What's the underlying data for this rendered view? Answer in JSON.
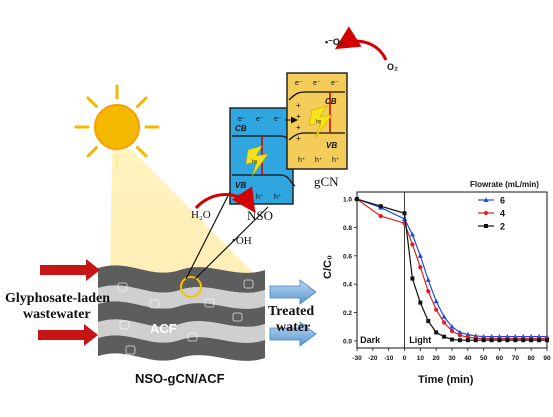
{
  "left": {
    "inlet_label_line1": "Glyphosate-laden",
    "inlet_label_line2": "wastewater",
    "outlet_label_line1": "Treated",
    "outlet_label_line2": "water",
    "fabric_label": "ACF",
    "composite_label": "NSO-gCN/ACF"
  },
  "bands": {
    "nso_label": "NSO",
    "gcn_label": "gCN",
    "cb": "CB",
    "vb": "VB",
    "electron": "e⁻",
    "hole": "h⁺",
    "hv": "hν",
    "water": "H₂O",
    "hydroxyl": "•OH",
    "o2": "O₂",
    "superoxide": "•⁻O₂"
  },
  "colors": {
    "nso_fill": "#2fa6e0",
    "gcn_fill": "#f3cc5a",
    "sun": "#f5b800",
    "arrow_red": "#d40000",
    "arrow_blue": "#6aa6dc",
    "series_6": "#1f4ee0",
    "series_4": "#e01f1f",
    "series_2": "#111111"
  },
  "chart_data": {
    "type": "line",
    "xlabel": "Time (min)",
    "ylabel": "C/C₀",
    "xlim": [
      -30,
      90
    ],
    "ylim": [
      -0.05,
      1.05
    ],
    "xticks": [
      -30,
      -20,
      -10,
      0,
      10,
      20,
      30,
      40,
      50,
      60,
      70,
      80,
      90
    ],
    "yticks": [
      0.0,
      0.2,
      0.4,
      0.6,
      0.8,
      1.0
    ],
    "legend_title": "Flowrate (mL/min)",
    "legend_position": "top-right",
    "regions": [
      {
        "label": "Dark",
        "x_from": -30,
        "x_to": 0
      },
      {
        "label": "Light",
        "x_from": 0,
        "x_to": 90
      }
    ],
    "x": [
      -30,
      -15,
      0,
      5,
      10,
      15,
      20,
      25,
      30,
      35,
      40,
      45,
      50,
      55,
      60,
      65,
      70,
      75,
      80,
      85,
      90
    ],
    "series": [
      {
        "name": "6",
        "color": "#1f4ee0",
        "marker": "triangle",
        "values": [
          1.0,
          0.94,
          0.86,
          0.75,
          0.6,
          0.43,
          0.28,
          0.17,
          0.1,
          0.06,
          0.045,
          0.035,
          0.03,
          0.03,
          0.03,
          0.03,
          0.03,
          0.03,
          0.03,
          0.03,
          0.03
        ]
      },
      {
        "name": "4",
        "color": "#e01f1f",
        "marker": "circle",
        "values": [
          1.0,
          0.88,
          0.83,
          0.68,
          0.52,
          0.35,
          0.22,
          0.13,
          0.07,
          0.04,
          0.025,
          0.02,
          0.015,
          0.015,
          0.015,
          0.015,
          0.015,
          0.015,
          0.015,
          0.015,
          0.015
        ]
      },
      {
        "name": "2",
        "color": "#111111",
        "marker": "square",
        "values": [
          1.0,
          0.95,
          0.9,
          0.44,
          0.27,
          0.14,
          0.06,
          0.03,
          0.01,
          0.005,
          0.005,
          0.005,
          0.005,
          0.005,
          0.005,
          0.005,
          0.005,
          0.005,
          0.005,
          0.005,
          0.005
        ]
      }
    ]
  }
}
